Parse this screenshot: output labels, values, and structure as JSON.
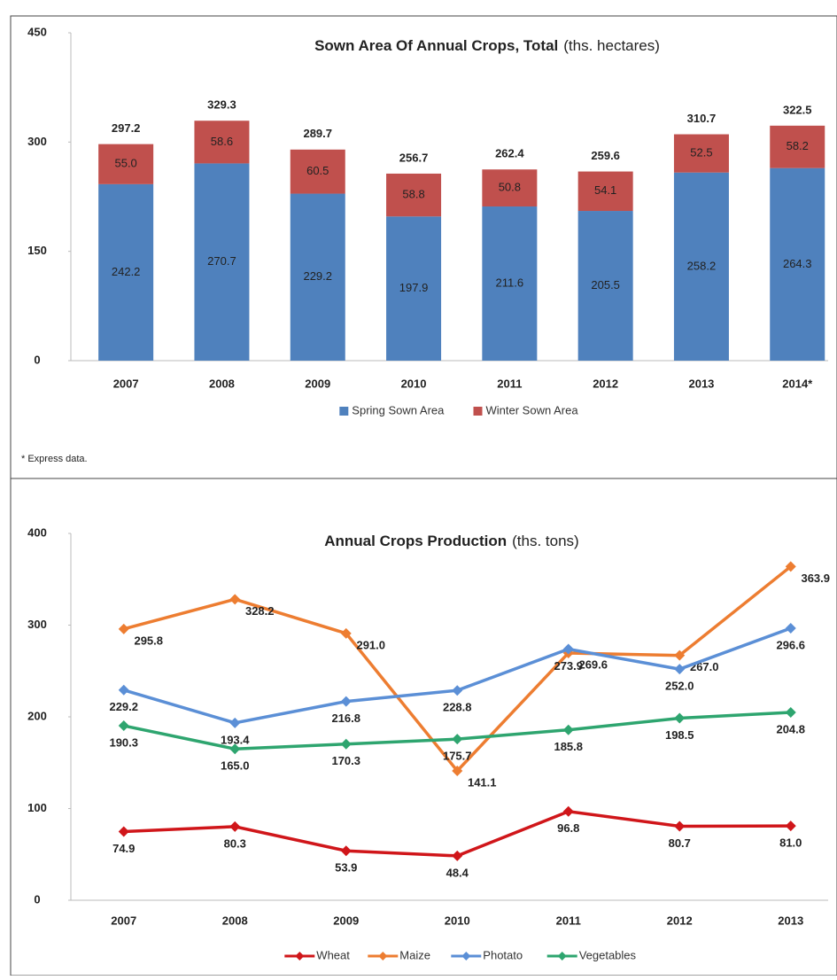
{
  "chart_data": [
    {
      "type": "stacked-bar",
      "title": "Sown Area Of Annual Crops, Total",
      "unit": "(ths. hectares)",
      "categories": [
        "2007",
        "2008",
        "2009",
        "2010",
        "2011",
        "2012",
        "2013",
        "2014*"
      ],
      "series": [
        {
          "name": "Spring Sown Area",
          "color": "#4f81bd",
          "values": [
            242.2,
            270.7,
            229.2,
            197.9,
            211.6,
            205.5,
            258.2,
            264.3
          ],
          "value_labels": [
            "242.2",
            "270.7",
            "229.2",
            "197.9",
            "211.6",
            "205.5",
            "258.2",
            "264.3"
          ]
        },
        {
          "name": "Winter Sown Area",
          "color": "#c0504d",
          "values": [
            55.0,
            58.6,
            60.5,
            58.8,
            50.8,
            54.1,
            52.5,
            58.2
          ],
          "value_labels": [
            "55.0",
            "58.6",
            "60.5",
            "58.8",
            "50.8",
            "54.1",
            "52.5",
            "58.2"
          ]
        }
      ],
      "totals": [
        297.2,
        329.3,
        289.7,
        256.7,
        262.4,
        259.6,
        310.7,
        322.5
      ],
      "totals_labels": [
        "297.2",
        "329.3",
        "289.7",
        "256.7",
        "262.4",
        "259.6",
        "310.7",
        "322.5"
      ],
      "ylim": [
        0,
        450
      ],
      "yticks": [
        0,
        150,
        300,
        450
      ],
      "legend": "bottom",
      "note": "* Express data."
    },
    {
      "type": "line",
      "title": "Annual Crops Production",
      "unit": "(ths. tons)",
      "categories": [
        "2007",
        "2008",
        "2009",
        "2010",
        "2011",
        "2012",
        "2013"
      ],
      "series": [
        {
          "name": "Wheat",
          "color": "#d0161a",
          "values": [
            74.9,
            80.3,
            53.9,
            48.4,
            96.8,
            80.7,
            81.0
          ],
          "value_labels": [
            "74.9",
            "80.3",
            "53.9",
            "48.4",
            "96.8",
            "80.7",
            "81.0"
          ]
        },
        {
          "name": "Maize",
          "color": "#ed7d31",
          "values": [
            295.8,
            328.2,
            291.0,
            141.1,
            269.6,
            267.0,
            363.9
          ],
          "value_labels": [
            "295.8",
            "328.2",
            "291.0",
            "141.1",
            "269.6",
            "267.0",
            "363.9"
          ]
        },
        {
          "name": "Photato",
          "color": "#5b8fd6",
          "values": [
            229.2,
            193.4,
            216.8,
            228.8,
            273.9,
            252.0,
            296.6
          ],
          "value_labels": [
            "229.2",
            "193.4",
            "216.8",
            "228.8",
            "273.9",
            "252.0",
            "296.6"
          ]
        },
        {
          "name": "Vegetables",
          "color": "#2ea56f",
          "values": [
            190.3,
            165.0,
            170.3,
            175.7,
            185.8,
            198.5,
            204.8
          ],
          "value_labels": [
            "190.3",
            "165.0",
            "170.3",
            "175.7",
            "185.8",
            "198.5",
            "204.8"
          ]
        }
      ],
      "ylim": [
        0,
        400
      ],
      "yticks": [
        0,
        100,
        200,
        300,
        400
      ],
      "legend": "bottom"
    }
  ]
}
